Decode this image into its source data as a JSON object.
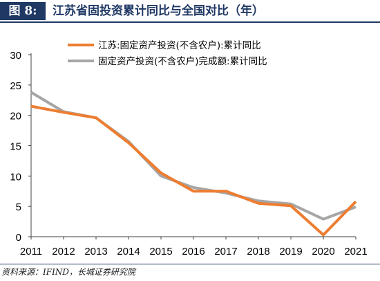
{
  "header": {
    "figure_tag": "图 8:",
    "title": "江苏省固投资累计同比与全国对比（年）"
  },
  "footer": {
    "source": "资料来源：IFIND，长城证券研究院"
  },
  "colors": {
    "header_bg": "#1f3864",
    "series_jiangsu": "#ed7d31",
    "series_national": "#a6a6a6"
  },
  "chart_data": {
    "type": "line",
    "title": "",
    "xlabel": "",
    "ylabel": "",
    "x": [
      "2011",
      "2012",
      "2013",
      "2014",
      "2015",
      "2016",
      "2017",
      "2018",
      "2019",
      "2020",
      "2021"
    ],
    "ylim": [
      0,
      30
    ],
    "yticks": [
      "0",
      "5",
      "10",
      "15",
      "20",
      "25",
      "30"
    ],
    "grid": false,
    "legend_position": "top-right",
    "series": [
      {
        "name": "江苏:固定资产投资(不含农户):累计同比",
        "color": "#ed7d31",
        "values": [
          21.5,
          20.5,
          19.6,
          15.5,
          10.5,
          7.5,
          7.5,
          5.5,
          5.1,
          0.3,
          5.8
        ]
      },
      {
        "name": "固定资产投资(不含农户)完成额:累计同比",
        "color": "#a6a6a6",
        "values": [
          23.8,
          20.6,
          19.6,
          15.7,
          10.0,
          8.1,
          7.2,
          5.9,
          5.4,
          2.9,
          4.9
        ]
      }
    ]
  }
}
